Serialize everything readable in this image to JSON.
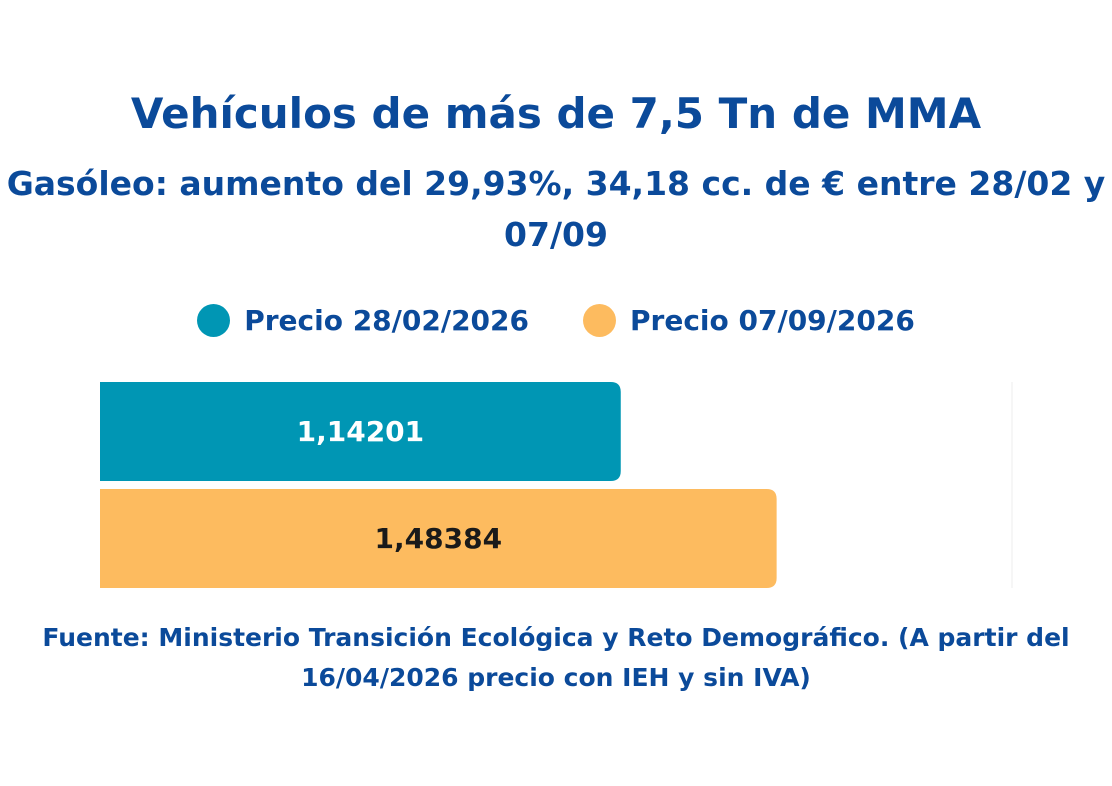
{
  "colors": {
    "text": "#0b4a9a",
    "series1": "#0096b4",
    "series2": "#fdbb5f",
    "label1": "#ffffff",
    "label2": "#1a1a1a"
  },
  "chart_data": {
    "type": "bar",
    "orientation": "horizontal",
    "title": "Vehículos de más de 7,5 Tn de MMA",
    "subtitle": "Gasóleo: aumento del 29,93%, 34,18 cc. de € entre 28/02 y 07/09",
    "legend_position": "top-center",
    "grid": false,
    "xlim": [
      0,
      2
    ],
    "series": [
      {
        "name": "Precio 28/02/2026",
        "value": 1.14201,
        "label": "1,14201",
        "color": "#0096b4"
      },
      {
        "name": "Precio 07/09/2026",
        "value": 1.48384,
        "label": "1,48384",
        "color": "#fdbb5f"
      }
    ],
    "source": "Fuente: Ministerio Transición Ecológica y Reto Demográfico. (A partir del 16/04/2026 precio con IEH y sin IVA)"
  }
}
